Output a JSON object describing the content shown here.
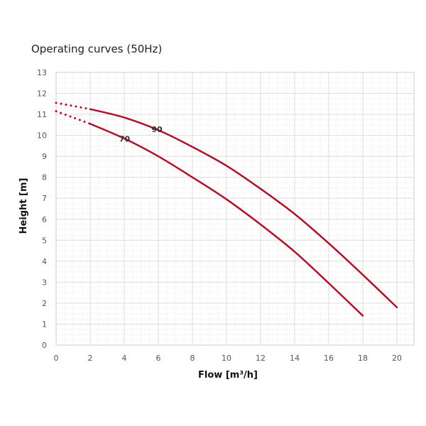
{
  "chart_data": {
    "type": "line",
    "title": "Operating curves (50Hz)",
    "xlabel": "Flow [m³/h]",
    "ylabel": "Height [m]",
    "xlim": [
      0,
      21
    ],
    "ylim": [
      0,
      13
    ],
    "xticks": [
      0,
      2,
      4,
      6,
      8,
      10,
      12,
      14,
      16,
      18,
      20
    ],
    "yticks": [
      0,
      1,
      2,
      3,
      4,
      5,
      6,
      7,
      8,
      9,
      10,
      11,
      12,
      13
    ],
    "grid": true,
    "colors": {
      "line": "#b0102a",
      "grid_major": "#dddddd",
      "grid_minor": "#eeeeee"
    },
    "series": [
      {
        "name": "90",
        "dotted": {
          "x": [
            0,
            2
          ],
          "y": [
            11.55,
            11.25
          ]
        },
        "x": [
          2,
          4,
          6,
          8,
          10,
          12,
          14,
          16,
          18,
          20
        ],
        "y": [
          11.25,
          10.85,
          10.25,
          9.45,
          8.55,
          7.45,
          6.25,
          4.85,
          3.35,
          1.8
        ]
      },
      {
        "name": "70",
        "dotted": {
          "x": [
            0,
            2
          ],
          "y": [
            11.15,
            10.55
          ]
        },
        "x": [
          2,
          4,
          6,
          8,
          10,
          12,
          14,
          16,
          18
        ],
        "y": [
          10.55,
          9.85,
          9.0,
          8.0,
          6.95,
          5.75,
          4.45,
          2.95,
          1.4
        ]
      }
    ]
  }
}
